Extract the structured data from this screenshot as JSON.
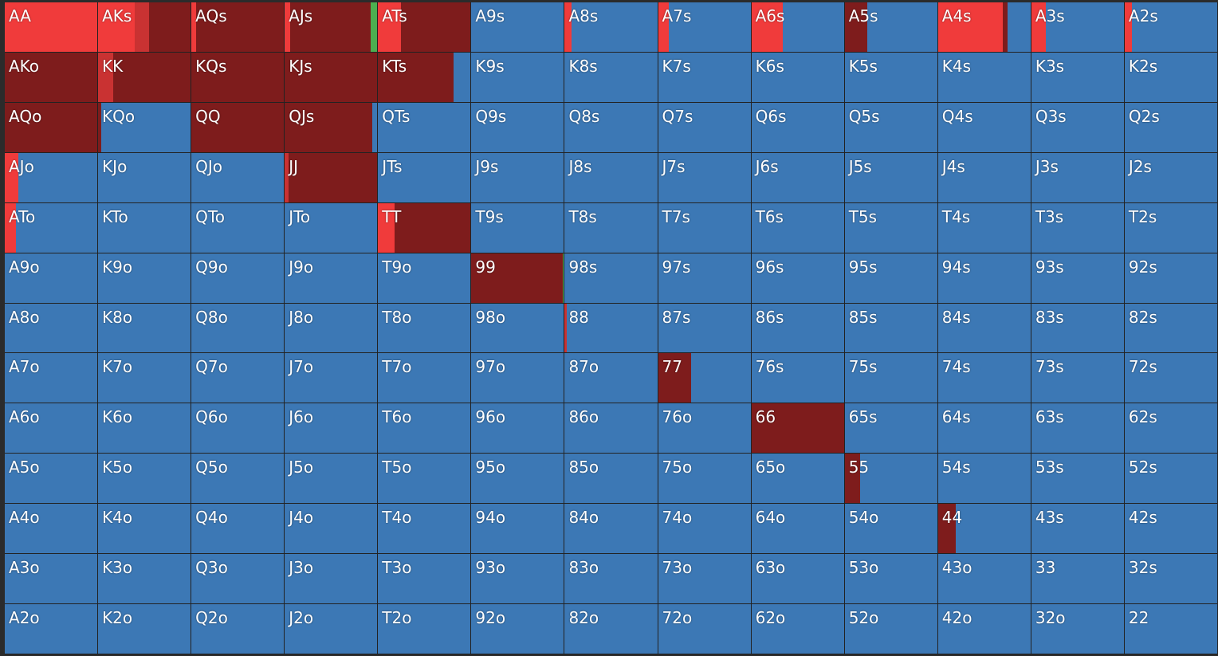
{
  "colors": {
    "raise_big": "#f03b3b",
    "raise_mid": "#c93232",
    "raise_small": "#7e1c1c",
    "call": "#4caf50",
    "fold": "#3c78b5"
  },
  "actions_order": [
    "raise_big",
    "raise_mid",
    "raise_small",
    "call",
    "fold"
  ],
  "hands": [
    {
      "label": "AA",
      "f": {
        "raise_big": 1.0
      }
    },
    {
      "label": "AKs",
      "f": {
        "raise_small": 0.45,
        "raise_mid": 0.15,
        "raise_big": 0.4
      }
    },
    {
      "label": "AQs",
      "f": {
        "raise_small": 0.95,
        "raise_big": 0.05
      }
    },
    {
      "label": "AJs",
      "f": {
        "raise_small": 0.87,
        "raise_big": 0.06,
        "call": 0.07
      }
    },
    {
      "label": "ATs",
      "f": {
        "raise_small": 0.75,
        "raise_big": 0.25
      }
    },
    {
      "label": "A9s",
      "f": {
        "fold": 1.0
      }
    },
    {
      "label": "A8s",
      "f": {
        "raise_big": 0.07,
        "fold": 0.93
      }
    },
    {
      "label": "A7s",
      "f": {
        "raise_big": 0.12,
        "fold": 0.88
      }
    },
    {
      "label": "A6s",
      "f": {
        "raise_big": 0.34,
        "fold": 0.66
      }
    },
    {
      "label": "A5s",
      "f": {
        "raise_small": 0.24,
        "fold": 0.76
      }
    },
    {
      "label": "A4s",
      "f": {
        "raise_small": 0.05,
        "raise_big": 0.7,
        "fold": 0.25
      }
    },
    {
      "label": "A3s",
      "f": {
        "raise_big": 0.16,
        "fold": 0.84
      }
    },
    {
      "label": "A2s",
      "f": {
        "raise_big": 0.08,
        "fold": 0.92
      }
    },
    {
      "label": "AKo",
      "f": {
        "raise_small": 1.0
      }
    },
    {
      "label": "KK",
      "f": {
        "raise_small": 0.84,
        "raise_mid": 0.16
      }
    },
    {
      "label": "KQs",
      "f": {
        "raise_small": 1.0
      }
    },
    {
      "label": "KJs",
      "f": {
        "raise_small": 1.0
      }
    },
    {
      "label": "KTs",
      "f": {
        "raise_small": 0.82,
        "fold": 0.18
      }
    },
    {
      "label": "K9s",
      "f": {
        "fold": 1.0
      }
    },
    {
      "label": "K8s",
      "f": {
        "fold": 1.0
      }
    },
    {
      "label": "K7s",
      "f": {
        "fold": 1.0
      }
    },
    {
      "label": "K6s",
      "f": {
        "fold": 1.0
      }
    },
    {
      "label": "K5s",
      "f": {
        "fold": 1.0
      }
    },
    {
      "label": "K4s",
      "f": {
        "fold": 1.0
      }
    },
    {
      "label": "K3s",
      "f": {
        "fold": 1.0
      }
    },
    {
      "label": "K2s",
      "f": {
        "fold": 1.0
      }
    },
    {
      "label": "AQo",
      "f": {
        "raise_small": 1.0
      }
    },
    {
      "label": "KQo",
      "f": {
        "raise_small": 0.03,
        "fold": 0.97
      }
    },
    {
      "label": "QQ",
      "f": {
        "raise_small": 1.0
      }
    },
    {
      "label": "QJs",
      "f": {
        "raise_small": 0.95,
        "fold": 0.05
      }
    },
    {
      "label": "QTs",
      "f": {
        "fold": 1.0
      }
    },
    {
      "label": "Q9s",
      "f": {
        "fold": 1.0
      }
    },
    {
      "label": "Q8s",
      "f": {
        "fold": 1.0
      }
    },
    {
      "label": "Q7s",
      "f": {
        "fold": 1.0
      }
    },
    {
      "label": "Q6s",
      "f": {
        "fold": 1.0
      }
    },
    {
      "label": "Q5s",
      "f": {
        "fold": 1.0
      }
    },
    {
      "label": "Q4s",
      "f": {
        "fold": 1.0
      }
    },
    {
      "label": "Q3s",
      "f": {
        "fold": 1.0
      }
    },
    {
      "label": "Q2s",
      "f": {
        "fold": 1.0
      }
    },
    {
      "label": "AJo",
      "f": {
        "raise_big": 0.15,
        "fold": 0.85
      }
    },
    {
      "label": "KJo",
      "f": {
        "fold": 1.0
      }
    },
    {
      "label": "QJo",
      "f": {
        "fold": 1.0
      }
    },
    {
      "label": "JJ",
      "f": {
        "raise_small": 0.96,
        "raise_mid": 0.04
      }
    },
    {
      "label": "JTs",
      "f": {
        "fold": 1.0
      }
    },
    {
      "label": "J9s",
      "f": {
        "fold": 1.0
      }
    },
    {
      "label": "J8s",
      "f": {
        "fold": 1.0
      }
    },
    {
      "label": "J7s",
      "f": {
        "fold": 1.0
      }
    },
    {
      "label": "J6s",
      "f": {
        "fold": 1.0
      }
    },
    {
      "label": "J5s",
      "f": {
        "fold": 1.0
      }
    },
    {
      "label": "J4s",
      "f": {
        "fold": 1.0
      }
    },
    {
      "label": "J3s",
      "f": {
        "fold": 1.0
      }
    },
    {
      "label": "J2s",
      "f": {
        "fold": 1.0
      }
    },
    {
      "label": "ATo",
      "f": {
        "raise_big": 0.12,
        "fold": 0.88
      }
    },
    {
      "label": "KTo",
      "f": {
        "fold": 1.0
      }
    },
    {
      "label": "QTo",
      "f": {
        "fold": 1.0
      }
    },
    {
      "label": "JTo",
      "f": {
        "fold": 1.0
      }
    },
    {
      "label": "TT",
      "f": {
        "raise_small": 0.82,
        "raise_big": 0.18
      }
    },
    {
      "label": "T9s",
      "f": {
        "fold": 1.0
      }
    },
    {
      "label": "T8s",
      "f": {
        "fold": 1.0
      }
    },
    {
      "label": "T7s",
      "f": {
        "fold": 1.0
      }
    },
    {
      "label": "T6s",
      "f": {
        "fold": 1.0
      }
    },
    {
      "label": "T5s",
      "f": {
        "fold": 1.0
      }
    },
    {
      "label": "T4s",
      "f": {
        "fold": 1.0
      }
    },
    {
      "label": "T3s",
      "f": {
        "fold": 1.0
      }
    },
    {
      "label": "T2s",
      "f": {
        "fold": 1.0
      }
    },
    {
      "label": "A9o",
      "f": {
        "fold": 1.0
      }
    },
    {
      "label": "K9o",
      "f": {
        "fold": 1.0
      }
    },
    {
      "label": "Q9o",
      "f": {
        "fold": 1.0
      }
    },
    {
      "label": "J9o",
      "f": {
        "fold": 1.0
      }
    },
    {
      "label": "T9o",
      "f": {
        "fold": 1.0
      }
    },
    {
      "label": "99",
      "f": {
        "raise_small": 0.99,
        "call": 0.01
      }
    },
    {
      "label": "98s",
      "f": {
        "fold": 1.0
      }
    },
    {
      "label": "97s",
      "f": {
        "fold": 1.0
      }
    },
    {
      "label": "96s",
      "f": {
        "fold": 1.0
      }
    },
    {
      "label": "95s",
      "f": {
        "fold": 1.0
      }
    },
    {
      "label": "94s",
      "f": {
        "fold": 1.0
      }
    },
    {
      "label": "93s",
      "f": {
        "fold": 1.0
      }
    },
    {
      "label": "92s",
      "f": {
        "fold": 1.0
      }
    },
    {
      "label": "A8o",
      "f": {
        "fold": 1.0
      }
    },
    {
      "label": "K8o",
      "f": {
        "fold": 1.0
      }
    },
    {
      "label": "Q8o",
      "f": {
        "fold": 1.0
      }
    },
    {
      "label": "J8o",
      "f": {
        "fold": 1.0
      }
    },
    {
      "label": "T8o",
      "f": {
        "fold": 1.0
      }
    },
    {
      "label": "98o",
      "f": {
        "fold": 1.0
      }
    },
    {
      "label": "88",
      "f": {
        "raise_mid": 0.02,
        "fold": 0.98
      }
    },
    {
      "label": "87s",
      "f": {
        "fold": 1.0
      }
    },
    {
      "label": "86s",
      "f": {
        "fold": 1.0
      }
    },
    {
      "label": "85s",
      "f": {
        "fold": 1.0
      }
    },
    {
      "label": "84s",
      "f": {
        "fold": 1.0
      }
    },
    {
      "label": "83s",
      "f": {
        "fold": 1.0
      }
    },
    {
      "label": "82s",
      "f": {
        "fold": 1.0
      }
    },
    {
      "label": "A7o",
      "f": {
        "fold": 1.0
      }
    },
    {
      "label": "K7o",
      "f": {
        "fold": 1.0
      }
    },
    {
      "label": "Q7o",
      "f": {
        "fold": 1.0
      }
    },
    {
      "label": "J7o",
      "f": {
        "fold": 1.0
      }
    },
    {
      "label": "T7o",
      "f": {
        "fold": 1.0
      }
    },
    {
      "label": "97o",
      "f": {
        "fold": 1.0
      }
    },
    {
      "label": "87o",
      "f": {
        "fold": 1.0
      }
    },
    {
      "label": "77",
      "f": {
        "raise_small": 0.36,
        "fold": 0.64
      }
    },
    {
      "label": "76s",
      "f": {
        "fold": 1.0
      }
    },
    {
      "label": "75s",
      "f": {
        "fold": 1.0
      }
    },
    {
      "label": "74s",
      "f": {
        "fold": 1.0
      }
    },
    {
      "label": "73s",
      "f": {
        "fold": 1.0
      }
    },
    {
      "label": "72s",
      "f": {
        "fold": 1.0
      }
    },
    {
      "label": "A6o",
      "f": {
        "fold": 1.0
      }
    },
    {
      "label": "K6o",
      "f": {
        "fold": 1.0
      }
    },
    {
      "label": "Q6o",
      "f": {
        "fold": 1.0
      }
    },
    {
      "label": "J6o",
      "f": {
        "fold": 1.0
      }
    },
    {
      "label": "T6o",
      "f": {
        "fold": 1.0
      }
    },
    {
      "label": "96o",
      "f": {
        "fold": 1.0
      }
    },
    {
      "label": "86o",
      "f": {
        "fold": 1.0
      }
    },
    {
      "label": "76o",
      "f": {
        "fold": 1.0
      }
    },
    {
      "label": "66",
      "f": {
        "raise_small": 1.0
      }
    },
    {
      "label": "65s",
      "f": {
        "fold": 1.0
      }
    },
    {
      "label": "64s",
      "f": {
        "fold": 1.0
      }
    },
    {
      "label": "63s",
      "f": {
        "fold": 1.0
      }
    },
    {
      "label": "62s",
      "f": {
        "fold": 1.0
      }
    },
    {
      "label": "A5o",
      "f": {
        "fold": 1.0
      }
    },
    {
      "label": "K5o",
      "f": {
        "fold": 1.0
      }
    },
    {
      "label": "Q5o",
      "f": {
        "fold": 1.0
      }
    },
    {
      "label": "J5o",
      "f": {
        "fold": 1.0
      }
    },
    {
      "label": "T5o",
      "f": {
        "fold": 1.0
      }
    },
    {
      "label": "95o",
      "f": {
        "fold": 1.0
      }
    },
    {
      "label": "85o",
      "f": {
        "fold": 1.0
      }
    },
    {
      "label": "75o",
      "f": {
        "fold": 1.0
      }
    },
    {
      "label": "65o",
      "f": {
        "fold": 1.0
      }
    },
    {
      "label": "55",
      "f": {
        "raise_small": 0.17,
        "fold": 0.83
      }
    },
    {
      "label": "54s",
      "f": {
        "fold": 1.0
      }
    },
    {
      "label": "53s",
      "f": {
        "fold": 1.0
      }
    },
    {
      "label": "52s",
      "f": {
        "fold": 1.0
      }
    },
    {
      "label": "A4o",
      "f": {
        "fold": 1.0
      }
    },
    {
      "label": "K4o",
      "f": {
        "fold": 1.0
      }
    },
    {
      "label": "Q4o",
      "f": {
        "fold": 1.0
      }
    },
    {
      "label": "J4o",
      "f": {
        "fold": 1.0
      }
    },
    {
      "label": "T4o",
      "f": {
        "fold": 1.0
      }
    },
    {
      "label": "94o",
      "f": {
        "fold": 1.0
      }
    },
    {
      "label": "84o",
      "f": {
        "fold": 1.0
      }
    },
    {
      "label": "74o",
      "f": {
        "fold": 1.0
      }
    },
    {
      "label": "64o",
      "f": {
        "fold": 1.0
      }
    },
    {
      "label": "54o",
      "f": {
        "fold": 1.0
      }
    },
    {
      "label": "44",
      "f": {
        "raise_small": 0.19,
        "fold": 0.81
      }
    },
    {
      "label": "43s",
      "f": {
        "fold": 1.0
      }
    },
    {
      "label": "42s",
      "f": {
        "fold": 1.0
      }
    },
    {
      "label": "A3o",
      "f": {
        "fold": 1.0
      }
    },
    {
      "label": "K3o",
      "f": {
        "fold": 1.0
      }
    },
    {
      "label": "Q3o",
      "f": {
        "fold": 1.0
      }
    },
    {
      "label": "J3o",
      "f": {
        "fold": 1.0
      }
    },
    {
      "label": "T3o",
      "f": {
        "fold": 1.0
      }
    },
    {
      "label": "93o",
      "f": {
        "fold": 1.0
      }
    },
    {
      "label": "83o",
      "f": {
        "fold": 1.0
      }
    },
    {
      "label": "73o",
      "f": {
        "fold": 1.0
      }
    },
    {
      "label": "63o",
      "f": {
        "fold": 1.0
      }
    },
    {
      "label": "53o",
      "f": {
        "fold": 1.0
      }
    },
    {
      "label": "43o",
      "f": {
        "fold": 1.0
      }
    },
    {
      "label": "33",
      "f": {
        "fold": 1.0
      }
    },
    {
      "label": "32s",
      "f": {
        "fold": 1.0
      }
    },
    {
      "label": "A2o",
      "f": {
        "fold": 1.0
      }
    },
    {
      "label": "K2o",
      "f": {
        "fold": 1.0
      }
    },
    {
      "label": "Q2o",
      "f": {
        "fold": 1.0
      }
    },
    {
      "label": "J2o",
      "f": {
        "fold": 1.0
      }
    },
    {
      "label": "T2o",
      "f": {
        "fold": 1.0
      }
    },
    {
      "label": "92o",
      "f": {
        "fold": 1.0
      }
    },
    {
      "label": "82o",
      "f": {
        "fold": 1.0
      }
    },
    {
      "label": "72o",
      "f": {
        "fold": 1.0
      }
    },
    {
      "label": "62o",
      "f": {
        "fold": 1.0
      }
    },
    {
      "label": "52o",
      "f": {
        "fold": 1.0
      }
    },
    {
      "label": "42o",
      "f": {
        "fold": 1.0
      }
    },
    {
      "label": "32o",
      "f": {
        "fold": 1.0
      }
    },
    {
      "label": "22",
      "f": {
        "fold": 1.0
      }
    }
  ]
}
